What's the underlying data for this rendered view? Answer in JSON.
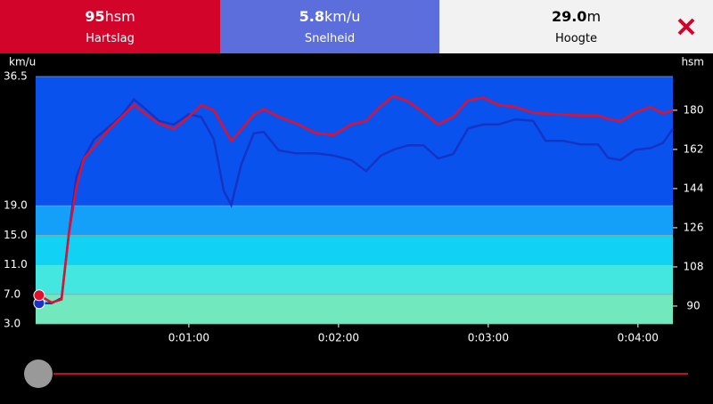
{
  "tabs": [
    {
      "value": "95",
      "unit": "hsm",
      "label": "Hartslag"
    },
    {
      "value": "5.8",
      "unit": "km/u",
      "label": "Snelheid"
    },
    {
      "value": "29.0",
      "unit": "m",
      "label": "Hoogte"
    }
  ],
  "chart_data": {
    "type": "line",
    "y_label": "km/u",
    "y2_label": "hsm",
    "x": [
      0,
      5,
      9,
      12,
      15,
      18,
      22,
      27,
      33,
      38,
      43,
      48,
      54,
      60,
      65,
      70,
      74,
      77,
      81,
      86,
      90,
      96,
      103,
      111,
      118,
      125,
      131,
      137,
      142,
      148,
      154,
      160,
      166,
      172,
      178,
      184,
      191,
      198,
      203,
      210,
      217,
      224,
      228,
      233,
      239,
      245,
      250,
      254
    ],
    "xlim": [
      -1.4,
      254
    ],
    "xticks": [
      {
        "value": 60,
        "label": "0:01:00"
      },
      {
        "value": 120,
        "label": "0:02:00"
      },
      {
        "value": 180,
        "label": "0:03:00"
      },
      {
        "value": 240,
        "label": "0:04:00"
      }
    ],
    "ylim": [
      3,
      36.5
    ],
    "yticks": [
      {
        "value": 3,
        "label": "3.0"
      },
      {
        "value": 7,
        "label": "7.0"
      },
      {
        "value": 11,
        "label": "11.0"
      },
      {
        "value": 15,
        "label": "15.0"
      },
      {
        "value": 19,
        "label": "19.0"
      },
      36.5
    ],
    "zone_colors": [
      "#72e8bf",
      "#44e6e0",
      "#12d2f4",
      "#149ff8",
      "#0a52ee"
    ],
    "y2lim": [
      81.8,
      195.5
    ],
    "y2ticks": [
      90,
      108,
      126,
      144,
      162,
      180
    ],
    "grid": true,
    "series": [
      {
        "color": "#1533c4",
        "values": [
          5.8,
          5.8,
          6.5,
          15.5,
          23,
          25.5,
          28,
          29.4,
          31.2,
          33.4,
          32,
          30.5,
          30,
          31.4,
          31,
          28,
          21,
          19.1,
          24.6,
          28.8,
          29,
          26.5,
          26.1,
          26.1,
          25.8,
          25.2,
          23.7,
          25.8,
          26.6,
          27.2,
          27.2,
          25.4,
          26,
          29.5,
          30,
          30,
          30.7,
          30.5,
          27.8,
          27.8,
          27.3,
          27.3,
          25.5,
          25.2,
          26.6,
          26.8,
          27.5,
          29.4
        ]
      },
      {
        "color": "#e2102c",
        "axis": "y2",
        "values": [
          95,
          91.6,
          93,
          124,
          145,
          158,
          163,
          170,
          177,
          182.5,
          178,
          174,
          171.4,
          177,
          182.5,
          180,
          172,
          166,
          171,
          178,
          180.5,
          177,
          174,
          169.5,
          168.6,
          173.5,
          175,
          182,
          186.6,
          184,
          179,
          173.5,
          177,
          184.5,
          185.8,
          182.5,
          181.5,
          178.8,
          178.5,
          178,
          177.6,
          177.6,
          176,
          175,
          179,
          181.5,
          178.5,
          180
        ]
      }
    ]
  }
}
